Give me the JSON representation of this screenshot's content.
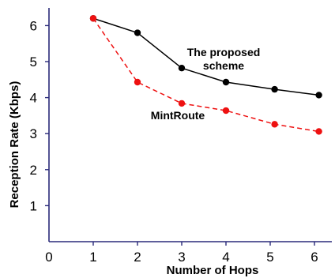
{
  "chart_data": {
    "type": "line",
    "title": "",
    "xlabel": "Number of Hops",
    "ylabel": "Reception Rate (Kbps)",
    "xlim": [
      0,
      6.4
    ],
    "ylim": [
      0,
      6.5
    ],
    "x_ticks": [
      "0",
      "1",
      "2",
      "3",
      "4",
      "5",
      "6"
    ],
    "y_ticks": [
      "1",
      "2",
      "3",
      "4",
      "5",
      "6"
    ],
    "grid": false,
    "series": [
      {
        "name": "The proposed scheme",
        "name_lines": [
          "The proposed",
          "scheme"
        ],
        "color": "#000000",
        "line_style": "solid",
        "x": [
          1,
          2,
          3,
          4,
          5.1,
          6.1
        ],
        "values": [
          6.2,
          5.8,
          4.82,
          4.43,
          4.23,
          4.07
        ]
      },
      {
        "name": "MintRoute",
        "name_lines": [
          "MintRoute"
        ],
        "color": "#ee1111",
        "line_style": "dashed",
        "x": [
          1,
          2,
          3,
          4,
          5.1,
          6.1
        ],
        "values": [
          6.2,
          4.43,
          3.84,
          3.64,
          3.26,
          3.06
        ]
      }
    ]
  }
}
